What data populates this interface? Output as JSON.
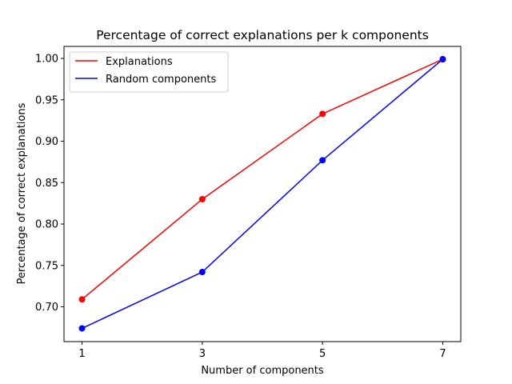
{
  "chart_data": {
    "type": "line",
    "title": "Percentage of correct explanations per k components",
    "xlabel": "Number of components",
    "ylabel": "Percentage of correct explanations",
    "x": [
      1,
      3,
      5,
      7
    ],
    "x_ticks": [
      "1",
      "3",
      "5",
      "7"
    ],
    "xlim": [
      0.7,
      7.3
    ],
    "ylim": [
      0.658,
      1.0145
    ],
    "y_ticks": [
      "0.70",
      "0.75",
      "0.80",
      "0.85",
      "0.90",
      "0.95",
      "1.00"
    ],
    "y_tick_values": [
      0.7,
      0.75,
      0.8,
      0.85,
      0.9,
      0.95,
      1.0
    ],
    "grid": false,
    "legend_position": "upper-left",
    "series": [
      {
        "name": "Explanations",
        "color": "#ff0000",
        "values": [
          0.709,
          0.83,
          0.933,
          0.999
        ]
      },
      {
        "name": "Random components",
        "color": "#0000ff",
        "values": [
          0.674,
          0.742,
          0.877,
          0.999
        ]
      }
    ]
  }
}
